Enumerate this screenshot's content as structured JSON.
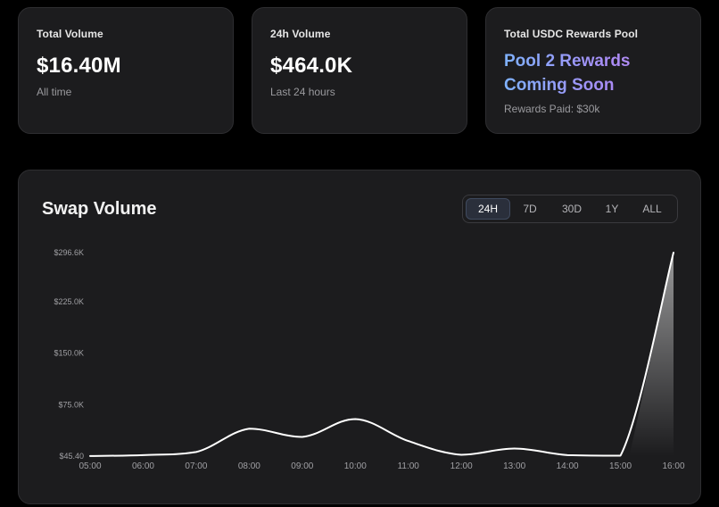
{
  "stats": [
    {
      "title": "Total Volume",
      "value": "$16.40M",
      "sub": "All time"
    },
    {
      "title": "24h Volume",
      "value": "$464.0K",
      "sub": "Last 24 hours"
    }
  ],
  "rewards": {
    "title": "Total USDC Rewards Pool",
    "line1": "Pool 2 Rewards",
    "line2": "Coming Soon",
    "sub": "Rewards Paid: $30k"
  },
  "chart_panel": {
    "title": "Swap Volume",
    "ranges": [
      "24H",
      "7D",
      "30D",
      "1Y",
      "ALL"
    ],
    "active_range": "24H"
  },
  "chart_data": {
    "type": "area",
    "title": "Swap Volume",
    "x": [
      "05:00",
      "06:00",
      "07:00",
      "08:00",
      "09:00",
      "10:00",
      "11:00",
      "12:00",
      "13:00",
      "14:00",
      "15:00",
      "16:00"
    ],
    "y_ticks": [
      {
        "label": "$296.6K",
        "value": 296600
      },
      {
        "label": "$225.0K",
        "value": 225000
      },
      {
        "label": "$150.0K",
        "value": 150000
      },
      {
        "label": "$75.0K",
        "value": 75000
      },
      {
        "label": "$45.40",
        "value": 0
      }
    ],
    "series": [
      {
        "values": [
          200,
          1500,
          6000,
          40000,
          28000,
          54000,
          22000,
          2000,
          11000,
          1500,
          700,
          296600
        ]
      }
    ],
    "ylim": [
      0,
      296600
    ],
    "grid": false,
    "colors": {
      "line": "#ffffff",
      "fill_top": "#ffffff"
    }
  }
}
